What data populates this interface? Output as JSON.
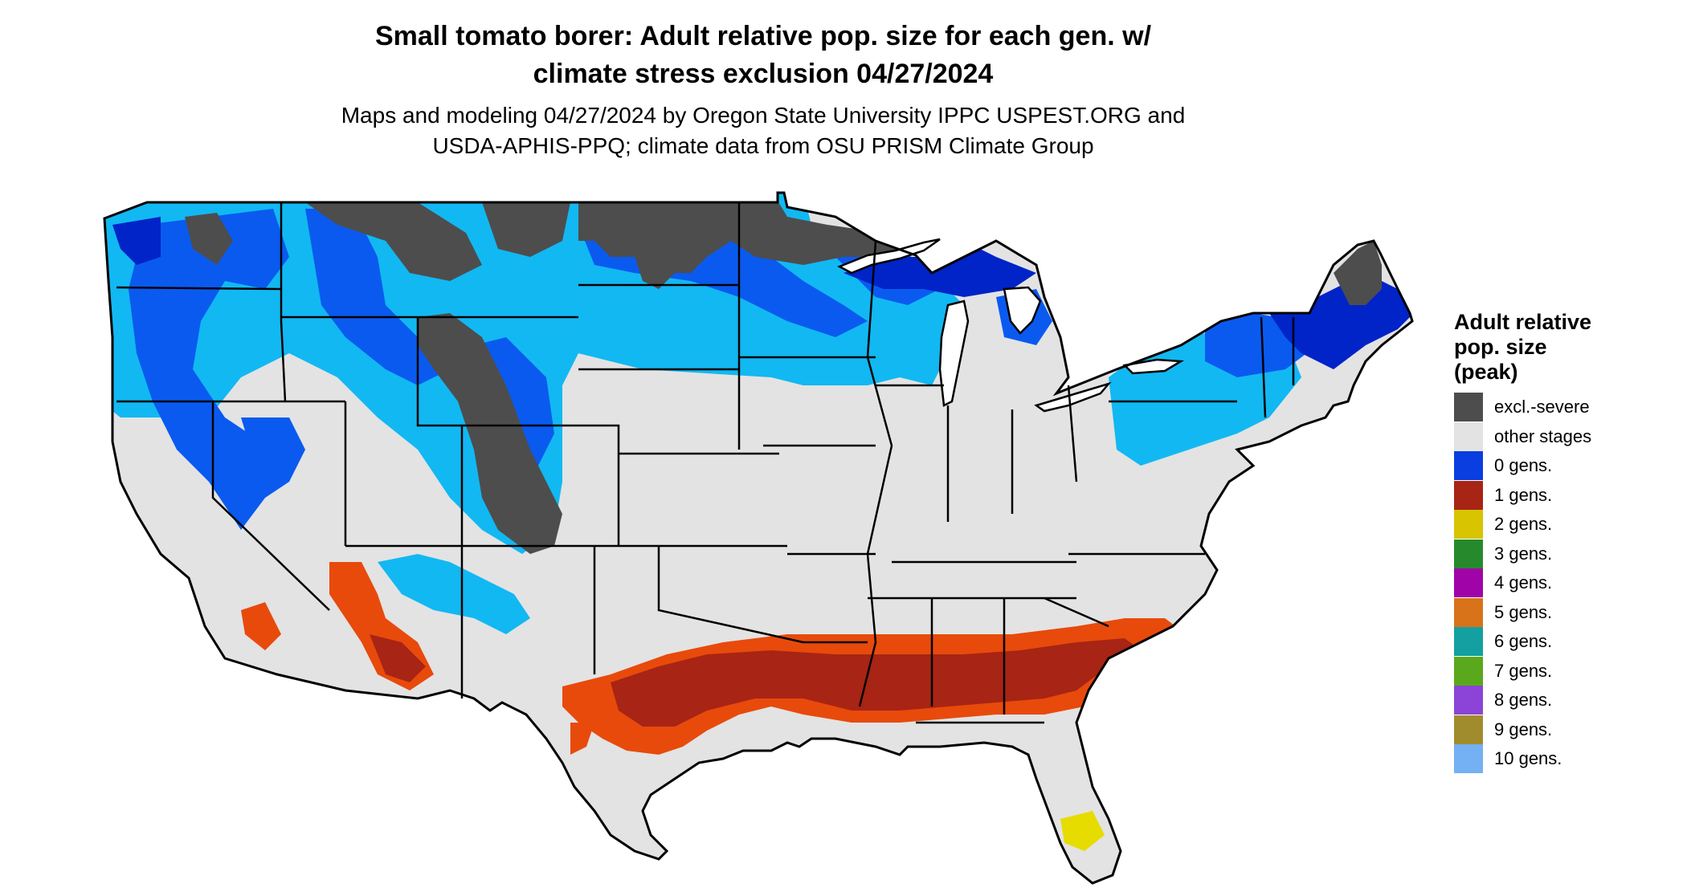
{
  "title_line1": "Small tomato borer: Adult relative pop. size for each gen. w/",
  "title_line2": "climate stress exclusion 04/27/2024",
  "subtitle_line1": "Maps and modeling 04/27/2024 by Oregon State University IPPC USPEST.ORG and",
  "subtitle_line2": "USDA-APHIS-PPQ; climate data from OSU PRISM Climate Group",
  "legend": {
    "title": [
      "Adult relative",
      "pop. size",
      "(peak)"
    ],
    "items": [
      {
        "label": "excl.-severe",
        "color": "#4d4d4d"
      },
      {
        "label": "other stages",
        "color": "#e3e3e3"
      },
      {
        "label": "0 gens.",
        "color": "#0a3ee0"
      },
      {
        "label": "1 gens.",
        "color": "#a82414"
      },
      {
        "label": "2 gens.",
        "color": "#d8c400"
      },
      {
        "label": "3 gens.",
        "color": "#268a2c"
      },
      {
        "label": "4 gens.",
        "color": "#a004a8"
      },
      {
        "label": "5 gens.",
        "color": "#d8731a"
      },
      {
        "label": "6 gens.",
        "color": "#14a0a0"
      },
      {
        "label": "7 gens.",
        "color": "#5aa81c"
      },
      {
        "label": "8 gens.",
        "color": "#8c44d8"
      },
      {
        "label": "9 gens.",
        "color": "#a08c2c"
      },
      {
        "label": "10 gens.",
        "color": "#74b0f4"
      }
    ]
  },
  "colors": {
    "land": "#e3e3e3",
    "excluded": "#4d4d4d",
    "blue_light": "#12b8f2",
    "blue_mid": "#0a5af0",
    "blue_dark": "#0024c8",
    "red_orange": "#e84a0c",
    "red_dark": "#a82414",
    "yellow": "#e6dc00",
    "water": "#ffffff",
    "border": "#000000"
  }
}
